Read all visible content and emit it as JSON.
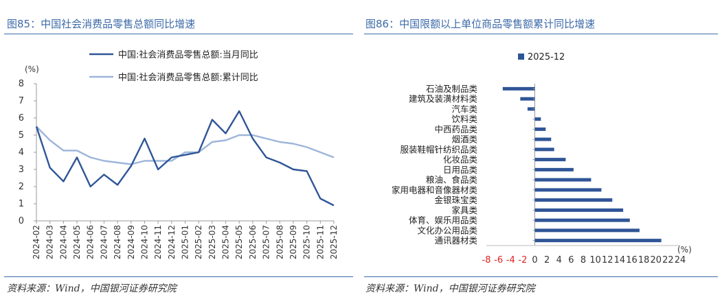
{
  "left": {
    "title": "图85：中国社会消费品零售总额同比增速",
    "source": "资料来源：Wind，中国银河证券研究院",
    "chart_data": {
      "type": "line",
      "ylabel": "(%)",
      "ylim": [
        0,
        8
      ],
      "yticks": [
        "0",
        "1",
        "2",
        "3",
        "4",
        "5",
        "6",
        "7",
        "8"
      ],
      "x": [
        "2024-02",
        "2024-03",
        "2024-04",
        "2024-05",
        "2024-06",
        "2024-07",
        "2024-08",
        "2024-09",
        "2024-10",
        "2024-11",
        "2024-12",
        "2025-01",
        "2025-02",
        "2025-03",
        "2025-04",
        "2025-05",
        "2025-06",
        "2025-07",
        "2025-08",
        "2025-09",
        "2025-10",
        "2025-11",
        "2025-12"
      ],
      "legend_position": "top",
      "series": [
        {
          "name": "中国:社会消费品零售总额:当月同比",
          "color": "#2f5597",
          "values": [
            5.5,
            3.1,
            2.3,
            3.7,
            2.0,
            2.7,
            2.1,
            3.2,
            4.8,
            3.0,
            3.7,
            3.85,
            4.0,
            5.9,
            5.1,
            6.4,
            4.8,
            3.7,
            3.4,
            3.0,
            2.9,
            1.3,
            0.9
          ]
        },
        {
          "name": "中国:社会消费品零售总额:累计同比",
          "color": "#9db5da",
          "values": [
            5.5,
            4.7,
            4.1,
            4.1,
            3.7,
            3.5,
            3.4,
            3.3,
            3.5,
            3.5,
            3.5,
            4.0,
            4.0,
            4.6,
            4.7,
            5.0,
            5.0,
            4.8,
            4.6,
            4.5,
            4.3,
            4.0,
            3.7
          ]
        }
      ]
    }
  },
  "right": {
    "title": "图86：中国限额以上单位商品零售额累计同比增速",
    "source": "资料来源：Wind，中国银河证券研究院",
    "chart_data": {
      "type": "bar",
      "orientation": "horizontal",
      "legend": "2025-12",
      "legend_position": "top",
      "unit": "(%)",
      "xlim": [
        -8,
        24
      ],
      "xticks": [
        "-8",
        "-6",
        "-4",
        "-2",
        "0",
        "2",
        "4",
        "6",
        "8",
        "10",
        "12",
        "14",
        "16",
        "18",
        "20",
        "22",
        "24"
      ],
      "bar_color": "#2f5597",
      "negative_tick_color": "#e02020",
      "categories": [
        "石油及制品类",
        "建筑及装潢材料类",
        "汽车类",
        "饮料类",
        "中西药品类",
        "烟酒类",
        "服装鞋帽针纺织品类",
        "化妆品类",
        "日用品类",
        "粮油、食品类",
        "家用电器和音像器材类",
        "金银珠宝类",
        "家具类",
        "体育、娱乐用品类",
        "文化办公用品类",
        "通讯器材类"
      ],
      "values": [
        -5.3,
        -2.4,
        -1.2,
        1.0,
        1.8,
        2.7,
        3.2,
        5.1,
        6.4,
        9.3,
        11.0,
        12.8,
        14.6,
        15.7,
        17.3,
        20.9
      ]
    }
  }
}
